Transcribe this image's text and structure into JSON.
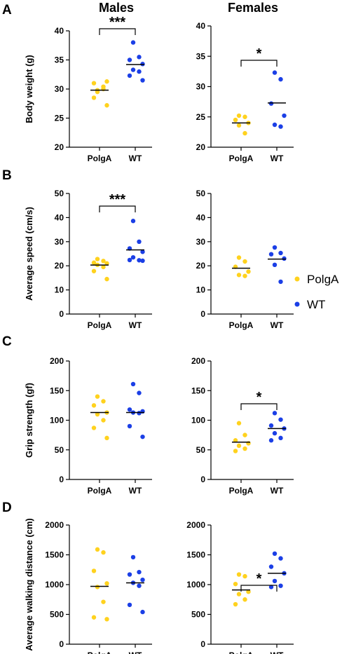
{
  "colors": {
    "polga": "#FFD21E",
    "wt": "#1B3FE6",
    "axis": "#000000"
  },
  "column_titles": [
    "Males",
    "Females"
  ],
  "legend": [
    {
      "label": "PolgA",
      "color": "#FFD21E"
    },
    {
      "label": "WT",
      "color": "#1B3FE6"
    }
  ],
  "chart_data": [
    {
      "id": "A-males",
      "type": "scatter",
      "panel": "A",
      "column": "Males",
      "ylabel": "Body weight (g)",
      "ylim": [
        20,
        40
      ],
      "yticks": [
        20,
        25,
        30,
        35,
        40
      ],
      "categories": [
        "PolgA",
        "WT"
      ],
      "series": [
        {
          "values": [
            29.8,
            30.4,
            31.0,
            31.3,
            29.5,
            30.0,
            28.5,
            27.2
          ],
          "mean": 29.8
        },
        {
          "values": [
            38.0,
            35.5,
            35.0,
            34.3,
            33.3,
            33.0,
            32.3,
            31.5
          ],
          "mean": 34.2
        }
      ],
      "significance": "***"
    },
    {
      "id": "A-females",
      "type": "scatter",
      "panel": "A",
      "column": "Females",
      "ylabel": "",
      "ylim": [
        20,
        40
      ],
      "yticks": [
        20,
        25,
        30,
        35,
        40
      ],
      "categories": [
        "PolgA",
        "WT"
      ],
      "series": [
        {
          "values": [
            25.2,
            25.0,
            24.5,
            24.0,
            23.6,
            22.3
          ],
          "mean": 24.0
        },
        {
          "values": [
            32.3,
            31.2,
            27.2,
            25.2,
            23.7,
            23.4
          ],
          "mean": 27.3
        }
      ],
      "significance": "*"
    },
    {
      "id": "B-males",
      "type": "scatter",
      "panel": "B",
      "column": "Males",
      "ylabel": "Average speed (cm/s)",
      "ylim": [
        0,
        50
      ],
      "yticks": [
        0,
        10,
        20,
        30,
        40,
        50
      ],
      "categories": [
        "PolgA",
        "WT"
      ],
      "series": [
        {
          "values": [
            22.8,
            22.0,
            21.3,
            21.0,
            20.4,
            19.5,
            17.8,
            14.5
          ],
          "mean": 20.3
        },
        {
          "values": [
            38.6,
            30.0,
            27.2,
            25.8,
            23.5,
            22.3,
            22.4,
            22.1
          ],
          "mean": 26.6
        }
      ],
      "significance": "***"
    },
    {
      "id": "B-females",
      "type": "scatter",
      "panel": "B",
      "column": "Females",
      "ylabel": "",
      "ylim": [
        0,
        50
      ],
      "yticks": [
        0,
        10,
        20,
        30,
        40,
        50
      ],
      "categories": [
        "PolgA",
        "WT"
      ],
      "series": [
        {
          "values": [
            23.4,
            21.8,
            19.6,
            17.6,
            16.2,
            15.8
          ],
          "mean": 19.0
        },
        {
          "values": [
            27.6,
            25.3,
            24.8,
            23.0,
            20.4,
            13.4
          ],
          "mean": 22.8
        }
      ],
      "significance": ""
    },
    {
      "id": "C-males",
      "type": "scatter",
      "panel": "C",
      "column": "Males",
      "ylabel": "Grip strength (gf)",
      "ylim": [
        0,
        200
      ],
      "yticks": [
        0,
        50,
        100,
        150,
        200
      ],
      "categories": [
        "PolgA",
        "WT"
      ],
      "series": [
        {
          "values": [
            140,
            132,
            125,
            113,
            110,
            100,
            87,
            70
          ],
          "mean": 113
        },
        {
          "values": [
            161,
            146,
            118,
            115,
            113,
            112,
            90,
            72
          ],
          "mean": 113
        }
      ],
      "significance": ""
    },
    {
      "id": "C-females",
      "type": "scatter",
      "panel": "C",
      "column": "Females",
      "ylabel": "",
      "ylim": [
        0,
        200
      ],
      "yticks": [
        0,
        50,
        100,
        150,
        200
      ],
      "categories": [
        "PolgA",
        "WT"
      ],
      "series": [
        {
          "values": [
            95,
            75,
            66,
            61,
            57,
            52,
            48
          ],
          "mean": 63
        },
        {
          "values": [
            112,
            101,
            91,
            86,
            78,
            70,
            66
          ],
          "mean": 86
        }
      ],
      "significance": "*"
    },
    {
      "id": "D-males",
      "type": "scatter",
      "panel": "D",
      "column": "Males",
      "ylabel": "Average walking distance (cm)",
      "ylim": [
        0,
        2000
      ],
      "yticks": [
        0,
        500,
        1000,
        1500,
        2000
      ],
      "categories": [
        "PolgA",
        "WT"
      ],
      "series": [
        {
          "values": [
            1590,
            1540,
            1230,
            1020,
            960,
            710,
            450,
            420
          ],
          "mean": 970
        },
        {
          "values": [
            1460,
            1210,
            1170,
            1080,
            1030,
            980,
            660,
            540
          ],
          "mean": 1030
        }
      ],
      "significance": ""
    },
    {
      "id": "D-females",
      "type": "scatter",
      "panel": "D",
      "column": "Females",
      "ylabel": "",
      "ylim": [
        0,
        2000
      ],
      "yticks": [
        0,
        500,
        1000,
        1500,
        2000
      ],
      "categories": [
        "PolgA",
        "WT"
      ],
      "series": [
        {
          "values": [
            1170,
            1140,
            1010,
            880,
            840,
            750,
            670
          ],
          "mean": 910
        },
        {
          "values": [
            1520,
            1440,
            1300,
            1190,
            1060,
            980,
            960
          ],
          "mean": 1190
        }
      ],
      "significance": "*"
    }
  ]
}
